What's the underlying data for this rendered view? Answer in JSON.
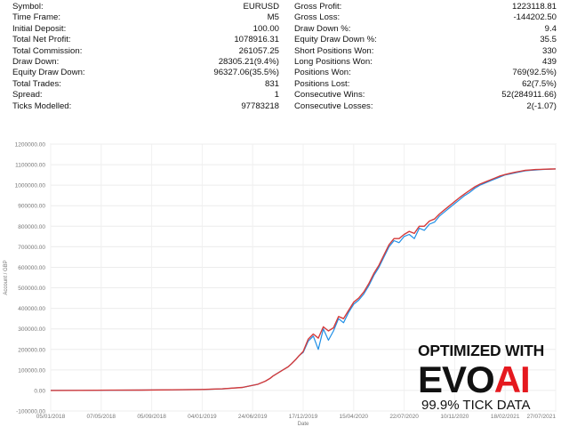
{
  "report": {
    "left": [
      {
        "label": "Symbol:",
        "value": "EURUSD"
      },
      {
        "label": "Time Frame:",
        "value": "M5"
      },
      {
        "label": "Initial Deposit:",
        "value": "100.00"
      },
      {
        "label": "Total Net Profit:",
        "value": "1078916.31"
      },
      {
        "label": "Total Commission:",
        "value": "261057.25"
      },
      {
        "label": "Draw Down:",
        "value": "28305.21(9.4%)"
      },
      {
        "label": "Equity Draw Down:",
        "value": "96327.06(35.5%)"
      },
      {
        "label": "Total Trades:",
        "value": "831"
      },
      {
        "label": "Spread:",
        "value": "1"
      },
      {
        "label": "Ticks Modelled:",
        "value": "97783218"
      }
    ],
    "right": [
      {
        "label": "Gross Profit:",
        "value": "1223118.81"
      },
      {
        "label": "Gross Loss:",
        "value": "-144202.50"
      },
      {
        "label": "Draw Down %:",
        "value": "9.4"
      },
      {
        "label": "Equity Draw Down %:",
        "value": "35.5"
      },
      {
        "label": "Short Positions Won:",
        "value": "330"
      },
      {
        "label": "Long Positions Won:",
        "value": "439"
      },
      {
        "label": "Positions Won:",
        "value": "769(92.5%)"
      },
      {
        "label": "Positions Lost:",
        "value": "62(7.5%)"
      },
      {
        "label": "Consecutive Wins:",
        "value": "52(284911.66)"
      },
      {
        "label": "Consecutive Losses:",
        "value": "2(-1.07)"
      }
    ]
  },
  "badge": {
    "line1": "OPTIMIZED WITH",
    "evo": "EVO",
    "ai": "AI",
    "line3": "99.9% TICK DATA"
  },
  "chart_data": {
    "type": "line",
    "xlabel": "Date",
    "ylabel": "Account / GBP",
    "ylim": [
      -100000,
      1200000
    ],
    "y_ticks": [
      -100000,
      0,
      100000,
      200000,
      300000,
      400000,
      500000,
      600000,
      700000,
      800000,
      900000,
      1000000,
      1100000,
      1200000
    ],
    "y_tick_labels": [
      "-100000.00",
      "0.00",
      "100000.00",
      "200000.00",
      "300000.00",
      "400000.00",
      "500000.00",
      "600000.00",
      "700000.00",
      "800000.00",
      "900000.00",
      "1000000.00",
      "1100000.00",
      "1200000.00"
    ],
    "x_ticks": [
      "05/01/2018",
      "07/05/2018",
      "05/09/2018",
      "04/01/2019",
      "24/06/2019",
      "17/12/2019",
      "15/04/2020",
      "22/07/2020",
      "10/11/2020",
      "18/02/2021",
      "27/07/2021"
    ],
    "grid": true,
    "series": [
      {
        "color": "#1f8fe6",
        "x": [
          0,
          6,
          12,
          18,
          24,
          30,
          34,
          38,
          41,
          42.5,
          43.5,
          44,
          45,
          46,
          47,
          47.7,
          48.5,
          49.2,
          50,
          51,
          52,
          53,
          54,
          55,
          56,
          57,
          58,
          59,
          60,
          61,
          62,
          63,
          64,
          65,
          66,
          67,
          68,
          69,
          70,
          71,
          72,
          73,
          74,
          75,
          76,
          77,
          78,
          79,
          80,
          81,
          82,
          83,
          84,
          85,
          86,
          87,
          88,
          89,
          90,
          91,
          92,
          93,
          94,
          95,
          96,
          97,
          98,
          99,
          100
        ],
        "y": [
          0,
          500,
          1200,
          2000,
          3000,
          5000,
          8000,
          15000,
          30000,
          45000,
          60000,
          70000,
          85000,
          100000,
          115000,
          130000,
          150000,
          170000,
          185000,
          240000,
          265000,
          200000,
          300000,
          245000,
          290000,
          350000,
          330000,
          380000,
          420000,
          440000,
          470000,
          510000,
          560000,
          600000,
          650000,
          700000,
          730000,
          720000,
          750000,
          760000,
          740000,
          790000,
          780000,
          810000,
          820000,
          850000,
          870000,
          890000,
          910000,
          930000,
          950000,
          965000,
          985000,
          1000000,
          1010000,
          1020000,
          1030000,
          1040000,
          1050000,
          1055000,
          1060000,
          1065000,
          1070000,
          1072000,
          1074000,
          1076000,
          1077000,
          1078000,
          1078916
        ]
      },
      {
        "color": "#d43b3b",
        "x": [
          0,
          6,
          12,
          18,
          24,
          30,
          34,
          38,
          41,
          42.5,
          43.5,
          44,
          45,
          46,
          47,
          47.7,
          48.5,
          49.2,
          50,
          51,
          52,
          53,
          54,
          55,
          56,
          57,
          58,
          59,
          60,
          61,
          62,
          63,
          64,
          65,
          66,
          67,
          68,
          69,
          70,
          71,
          72,
          73,
          74,
          75,
          76,
          77,
          78,
          79,
          80,
          81,
          82,
          83,
          84,
          85,
          86,
          87,
          88,
          89,
          90,
          91,
          92,
          93,
          94,
          95,
          96,
          97,
          98,
          99,
          100
        ],
        "y": [
          0,
          500,
          1200,
          2000,
          3000,
          5000,
          8000,
          15000,
          30000,
          45000,
          60000,
          70000,
          85000,
          100000,
          115000,
          130000,
          150000,
          170000,
          190000,
          250000,
          275000,
          255000,
          310000,
          290000,
          305000,
          360000,
          350000,
          390000,
          430000,
          450000,
          480000,
          520000,
          570000,
          610000,
          660000,
          710000,
          740000,
          740000,
          760000,
          775000,
          765000,
          800000,
          800000,
          825000,
          835000,
          860000,
          880000,
          900000,
          920000,
          940000,
          958000,
          975000,
          992000,
          1005000,
          1015000,
          1025000,
          1035000,
          1045000,
          1052000,
          1058000,
          1063000,
          1068000,
          1072000,
          1074000,
          1076000,
          1077000,
          1078000,
          1078500,
          1078916
        ]
      }
    ]
  }
}
